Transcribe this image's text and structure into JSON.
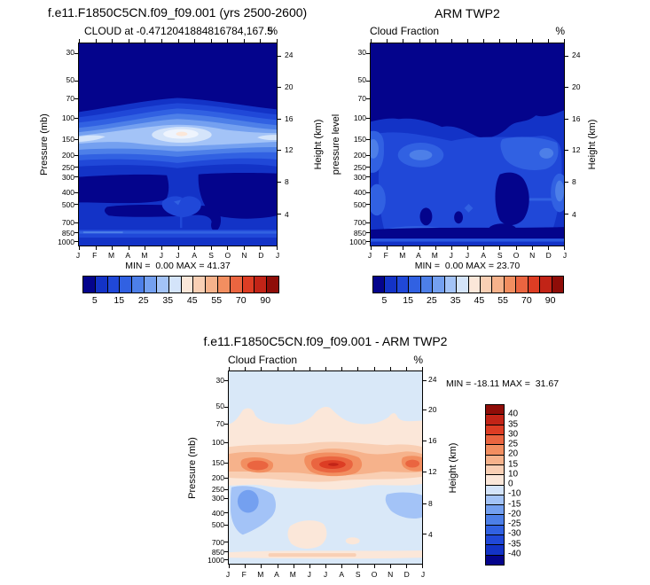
{
  "axis": {
    "months": [
      "J",
      "F",
      "M",
      "A",
      "M",
      "J",
      "J",
      "A",
      "S",
      "O",
      "N",
      "D",
      "J"
    ],
    "pressure_ticks": [
      "30",
      "50",
      "70",
      "100",
      "150",
      "200",
      "250",
      "300",
      "400",
      "500",
      "700",
      "850",
      "1000"
    ],
    "height_ticks": [
      "24",
      "20",
      "16",
      "12",
      "8",
      "4"
    ]
  },
  "panels": {
    "model": {
      "title": "f.e11.F1850C5CN.f09_f09.001 (yrs 2500-2600)",
      "subtitle": "CLOUD at -0.4712041884816784,167.5",
      "unit": "%",
      "ylabel_left": "Pressure (mb)",
      "ylabel_right": "Height (km)",
      "stats": "MIN =  0.00 MAX = 41.37"
    },
    "obs": {
      "title": "ARM TWP2",
      "subtitle": "Cloud Fraction",
      "unit": "%",
      "ylabel_left": "pressure level",
      "ylabel_right": "Height (km)",
      "stats": "MIN =  0.00 MAX = 23.70"
    },
    "diff": {
      "title": "f.e11.F1850C5CN.f09_f09.001 - ARM TWP2",
      "subtitle": "Cloud Fraction",
      "unit": "%",
      "ylabel_left": "Pressure (mb)",
      "ylabel_right": "Height (km)",
      "stats": "MIN = -18.11 MAX =  31.67"
    }
  },
  "cloud_colorbar_labels": [
    "5",
    "15",
    "25",
    "35",
    "45",
    "55",
    "70",
    "90"
  ],
  "diff_colorbar_labels": [
    "40",
    "35",
    "30",
    "25",
    "20",
    "15",
    "10",
    "0",
    "-10",
    "-15",
    "-20",
    "-25",
    "-30",
    "-35",
    "-40"
  ],
  "colors": {
    "background": "#ffffff",
    "frame": "#000000",
    "cloud_palette": [
      "#04048c",
      "#1333c7",
      "#2048d8",
      "#3161e2",
      "#4d7fe8",
      "#74a0f0",
      "#a3c3f7",
      "#d4e4fa",
      "#fbe7d9",
      "#f9cfb4",
      "#f6b28b",
      "#f28e60",
      "#ea6540",
      "#dd3d24",
      "#c22417",
      "#8f0d08"
    ],
    "diff_palette": [
      "#8f0d08",
      "#c22417",
      "#dd3d24",
      "#ea6540",
      "#f28e60",
      "#f6b28b",
      "#f9cfb4",
      "#fbe7d9",
      "#d4e4fa",
      "#a3c3f7",
      "#74a0f0",
      "#4d7fe8",
      "#3161e2",
      "#2048d8",
      "#1333c7",
      "#04048c"
    ]
  },
  "chart_data": [
    {
      "type": "heatmap",
      "subtype": "filled-contour",
      "panel": "top-left",
      "title": "f.e11.F1850C5CN.f09_f09.001 (yrs 2500-2600)",
      "subtitle": "CLOUD at -0.4712041884816784,167.5",
      "units": "%",
      "x": [
        "J",
        "F",
        "M",
        "A",
        "M",
        "J",
        "J",
        "A",
        "S",
        "O",
        "N",
        "D",
        "J"
      ],
      "ylabel_left": "Pressure (mb)",
      "ylabel_right": "Height (km)",
      "y_pressure_mb": [
        30,
        50,
        70,
        100,
        150,
        200,
        250,
        300,
        400,
        500,
        700,
        850,
        1000
      ],
      "y_height_km": [
        24,
        20,
        16,
        12,
        8,
        4
      ],
      "y_scale": "log",
      "levels": [
        5,
        10,
        15,
        20,
        25,
        30,
        35,
        40,
        45,
        50,
        55,
        60,
        70,
        80,
        90
      ],
      "min": 0.0,
      "max": 41.37,
      "legend_position": "bottom",
      "estimated_values_at_150mb": [
        30,
        29,
        28,
        29,
        32,
        38,
        41,
        35,
        31,
        29,
        29,
        31,
        30
      ],
      "estimated_values_at_500mb": [
        6,
        7,
        5,
        6,
        8,
        9,
        8,
        6,
        5,
        5,
        6,
        6,
        6
      ],
      "estimated_values_at_900mb": [
        9,
        9,
        8,
        8,
        9,
        10,
        9,
        8,
        8,
        8,
        9,
        9,
        9
      ],
      "description": "High-cloud band between 100-250 mb (12-16 km) peaking ~41% near 150 mb in Jun-Jul; <5% over most of the rest of the domain"
    },
    {
      "type": "heatmap",
      "subtype": "filled-contour",
      "panel": "top-right",
      "title": "ARM TWP2",
      "subtitle": "Cloud Fraction",
      "units": "%",
      "x": [
        "J",
        "F",
        "M",
        "A",
        "M",
        "J",
        "J",
        "A",
        "S",
        "O",
        "N",
        "D",
        "J"
      ],
      "ylabel_left": "pressure level",
      "ylabel_right": "Height (km)",
      "y_pressure_mb": [
        30,
        50,
        70,
        100,
        150,
        200,
        250,
        300,
        400,
        500,
        700,
        850,
        1000
      ],
      "y_height_km": [
        24,
        20,
        16,
        12,
        8,
        4
      ],
      "y_scale": "log",
      "levels": [
        5,
        10,
        15,
        20,
        25,
        30,
        35,
        40,
        45,
        50,
        55,
        60,
        70,
        80,
        90
      ],
      "min": 0.0,
      "max": 23.7,
      "legend_position": "bottom",
      "estimated_values_at_200mb": [
        13,
        12,
        12,
        13,
        14,
        12,
        11,
        12,
        14,
        15,
        13,
        13,
        13
      ],
      "estimated_values_at_500mb": [
        8,
        8,
        8,
        7,
        7,
        7,
        6,
        4,
        5,
        7,
        8,
        8,
        8
      ],
      "description": "Broad 5-20% cloud fraction below 100 mb, lighter (15-20%) patches near 200-300 mb; <5% above ~100 mb and in blobs near 500-700 mb Aug-Sep"
    },
    {
      "type": "heatmap",
      "subtype": "filled-contour",
      "panel": "bottom",
      "title": "f.e11.F1850C5CN.f09_f09.001 - ARM TWP2",
      "subtitle": "Cloud Fraction",
      "units": "%",
      "x": [
        "J",
        "F",
        "M",
        "A",
        "M",
        "J",
        "J",
        "A",
        "S",
        "O",
        "N",
        "D",
        "J"
      ],
      "ylabel_left": "Pressure (mb)",
      "ylabel_right": "Height (km)",
      "y_pressure_mb": [
        30,
        50,
        70,
        100,
        150,
        200,
        250,
        300,
        400,
        500,
        700,
        850,
        1000
      ],
      "y_height_km": [
        24,
        20,
        16,
        12,
        8,
        4
      ],
      "y_scale": "log",
      "levels": [
        -40,
        -35,
        -30,
        -25,
        -20,
        -15,
        -10,
        0,
        10,
        15,
        20,
        25,
        30,
        35,
        40
      ],
      "min": -18.11,
      "max": 31.67,
      "legend_position": "right",
      "estimated_values_at_150mb": [
        14,
        24,
        18,
        10,
        14,
        26,
        32,
        28,
        18,
        12,
        14,
        22,
        14
      ],
      "estimated_values_at_400mb": [
        -12,
        -18,
        -10,
        -4,
        -2,
        -1,
        -2,
        -3,
        -3,
        -6,
        -9,
        -8,
        -12
      ],
      "description": "Positive (red) model-minus-obs band 100-200 mb peaking ~32 in Jul-Aug; negative (blue) patches -10 to -18 near 300-500 mb in Jan-Mar and Nov-Dec"
    }
  ]
}
